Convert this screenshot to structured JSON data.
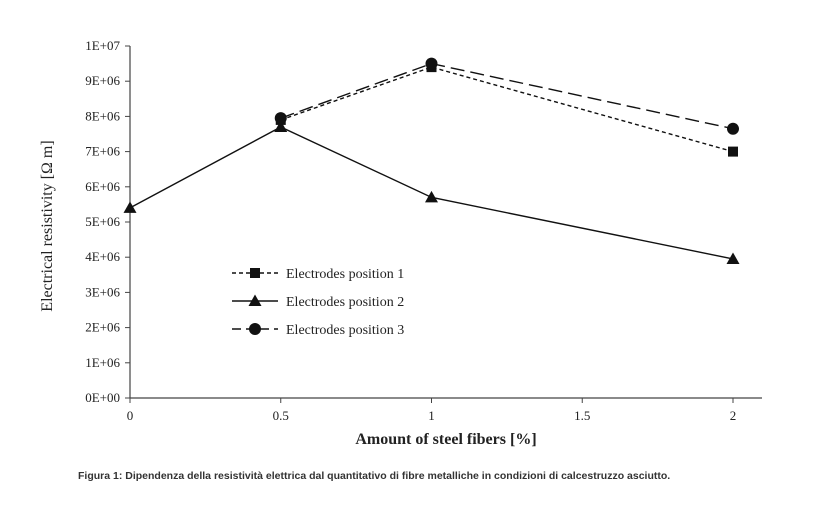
{
  "chart_data": {
    "type": "line",
    "xlabel": "Amount of steel fibers [%]",
    "ylabel": "Electrical resistivity [Ω m]",
    "xlim": [
      0,
      2
    ],
    "ylim": [
      0,
      10000000
    ],
    "x_ticks": [
      0,
      0.5,
      1,
      1.5,
      2
    ],
    "x_tick_labels": [
      "0",
      "0.5",
      "1",
      "1.5",
      "2"
    ],
    "y_ticks": [
      0,
      1000000,
      2000000,
      3000000,
      4000000,
      5000000,
      6000000,
      7000000,
      8000000,
      9000000,
      10000000
    ],
    "y_tick_labels": [
      "0E+00",
      "1E+06",
      "2E+06",
      "3E+06",
      "4E+06",
      "5E+06",
      "6E+06",
      "7E+06",
      "8E+06",
      "9E+06",
      "1E+07"
    ],
    "grid": false,
    "legend_position": "bottom-left inside plot",
    "series": [
      {
        "name": "Electrodes position 1",
        "marker": "square",
        "line_style": "dotted",
        "x": [
          0.5,
          1,
          2
        ],
        "y": [
          7900000,
          9400000,
          7000000
        ]
      },
      {
        "name": "Electrodes position 2",
        "marker": "triangle",
        "line_style": "solid",
        "x": [
          0,
          0.5,
          1,
          2
        ],
        "y": [
          5400000,
          7700000,
          5700000,
          3950000
        ]
      },
      {
        "name": "Electrodes position 3",
        "marker": "circle",
        "line_style": "dashed",
        "x": [
          0.5,
          1,
          2
        ],
        "y": [
          7950000,
          9500000,
          7650000
        ]
      }
    ]
  },
  "caption": "Figura 1: Dipendenza della resistività elettrica dal quantitativo di fibre metalliche in condizioni di calcestruzzo asciutto."
}
